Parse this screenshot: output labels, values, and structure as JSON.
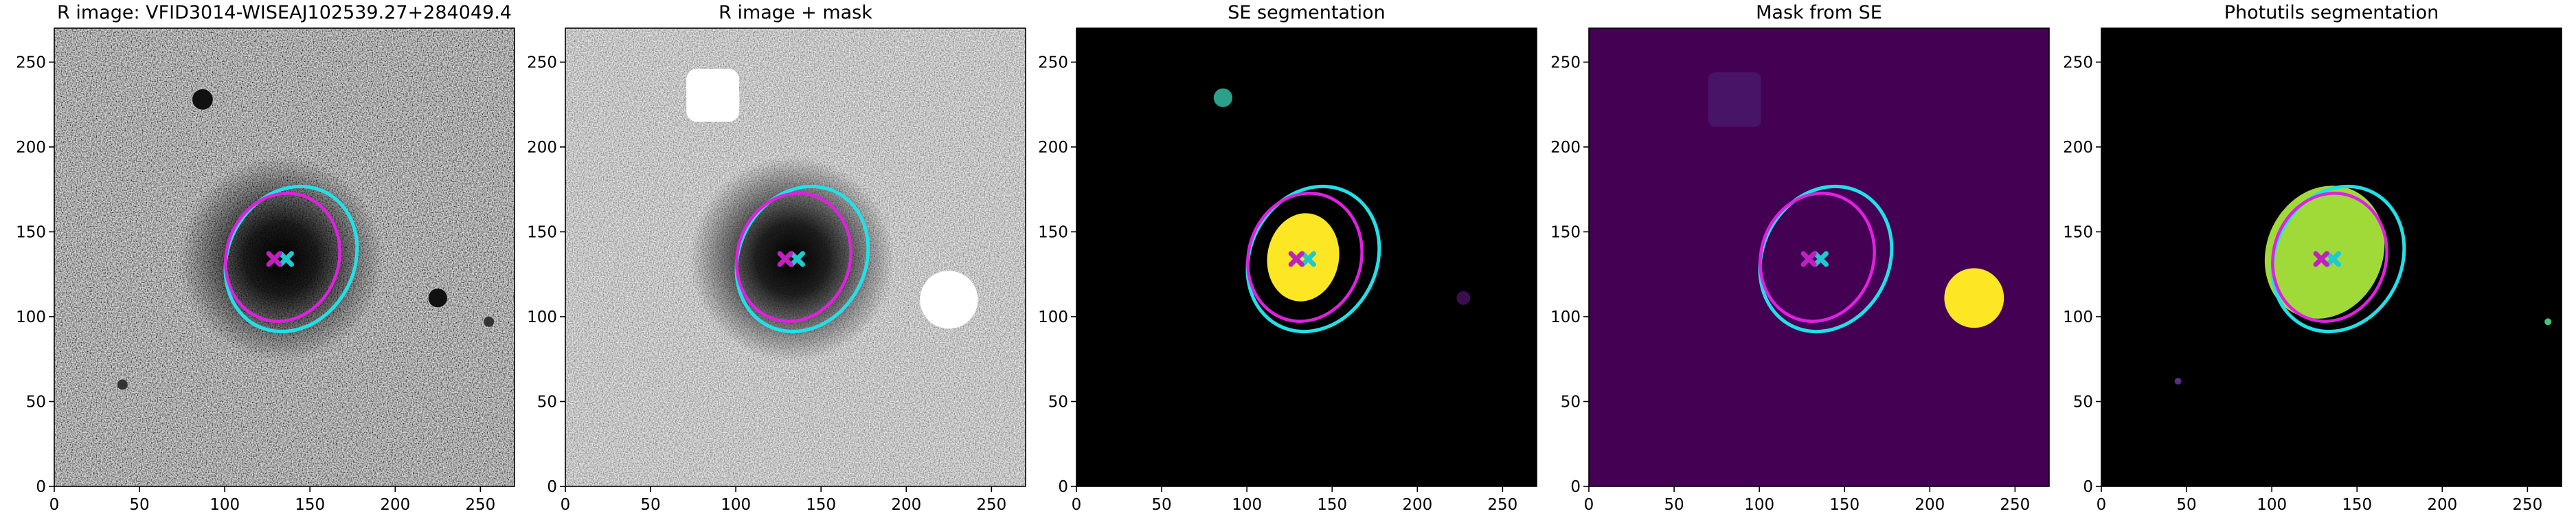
{
  "chart_data": [
    {
      "type": "image",
      "title": "R image: VFID3014-WISEAJ102539.27+284049.4",
      "xlim": [
        0,
        270
      ],
      "ylim": [
        0,
        270
      ],
      "xticks": [
        0,
        50,
        100,
        150,
        200,
        250
      ],
      "yticks": [
        0,
        50,
        100,
        150,
        200,
        250
      ]
    },
    {
      "type": "image",
      "title": "R image + mask",
      "xlim": [
        0,
        270
      ],
      "ylim": [
        0,
        270
      ],
      "xticks": [
        0,
        50,
        100,
        150,
        200,
        250
      ],
      "yticks": [
        0,
        50,
        100,
        150,
        200,
        250
      ]
    },
    {
      "type": "image",
      "title": "SE segmentation",
      "xlim": [
        0,
        270
      ],
      "ylim": [
        0,
        270
      ],
      "xticks": [
        0,
        50,
        100,
        150,
        200,
        250
      ],
      "yticks": [
        0,
        50,
        100,
        150,
        200,
        250
      ]
    },
    {
      "type": "image",
      "title": "Mask from SE",
      "xlim": [
        0,
        270
      ],
      "ylim": [
        0,
        270
      ],
      "xticks": [
        0,
        50,
        100,
        150,
        200,
        250
      ],
      "yticks": [
        0,
        50,
        100,
        150,
        200,
        250
      ]
    },
    {
      "type": "image",
      "title": "Photutils segmentation",
      "xlim": [
        0,
        270
      ],
      "ylim": [
        0,
        270
      ],
      "xticks": [
        0,
        50,
        100,
        150,
        200,
        250
      ],
      "yticks": [
        0,
        50,
        100,
        150,
        200,
        250
      ]
    }
  ]
}
